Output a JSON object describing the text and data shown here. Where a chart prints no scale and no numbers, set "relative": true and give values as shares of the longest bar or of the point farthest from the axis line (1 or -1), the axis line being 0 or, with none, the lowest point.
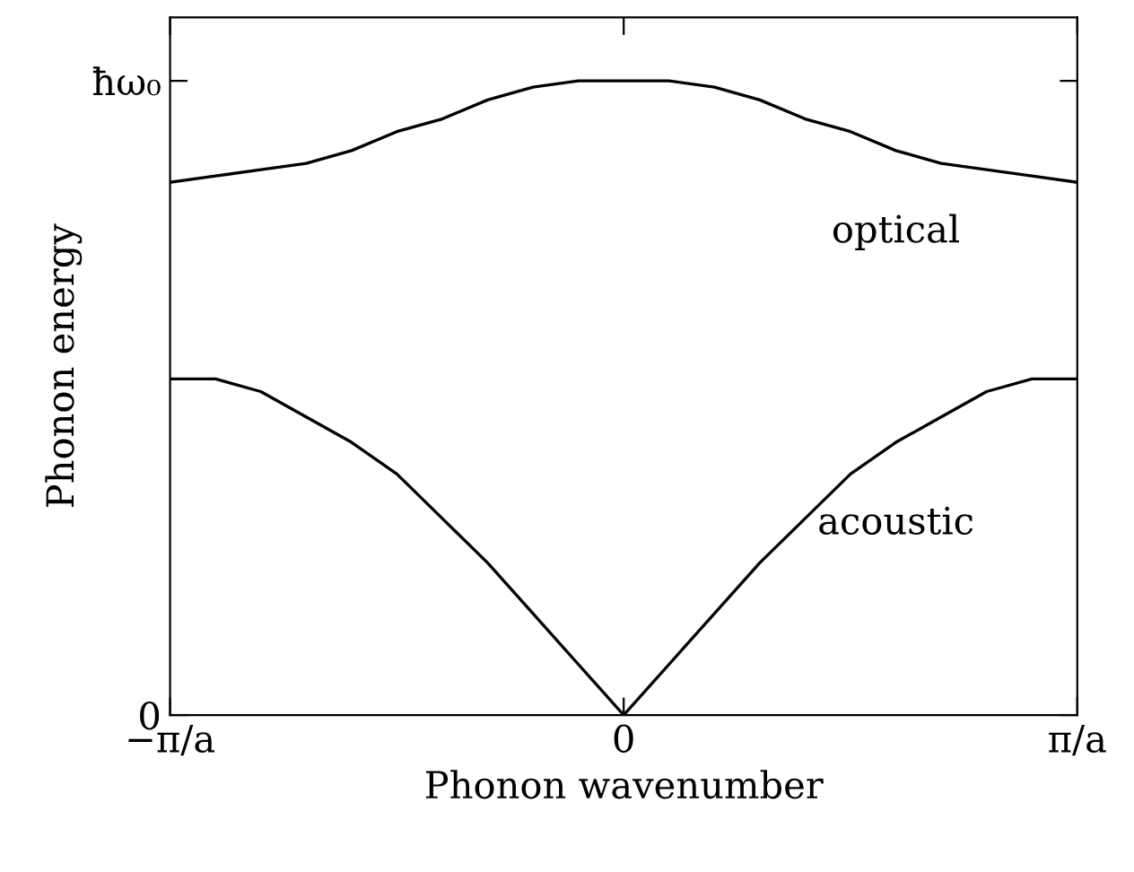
{
  "chart_data": {
    "type": "line",
    "xlabel": "Phonon wavenumber",
    "ylabel": "Phonon energy",
    "relative": true,
    "categories": [
      "−π/a",
      null,
      null,
      null,
      null,
      null,
      null,
      null,
      null,
      null,
      "0",
      null,
      null,
      null,
      null,
      null,
      null,
      null,
      null,
      null,
      "π/a"
    ],
    "series": [
      {
        "name": "optical",
        "color": "#000000",
        "values": [
          0.84,
          0.85,
          0.86,
          0.87,
          0.89,
          0.92,
          0.94,
          0.97,
          0.99,
          1.0,
          1.0,
          1.0,
          0.99,
          0.97,
          0.94,
          0.92,
          0.89,
          0.87,
          0.86,
          0.85,
          0.84
        ]
      },
      {
        "name": "acoustic",
        "color": "#000000",
        "values": [
          0.53,
          0.53,
          0.51,
          0.47,
          0.43,
          0.38,
          0.31,
          0.24,
          0.16,
          0.08,
          0,
          0.08,
          0.16,
          0.24,
          0.31,
          0.38,
          0.43,
          0.47,
          0.51,
          0.53,
          0.53
        ]
      }
    ],
    "annotations": [
      "0",
      "ħω₀"
    ],
    "grid": false,
    "legend": false,
    "marker": "none",
    "line_style": "solid"
  }
}
